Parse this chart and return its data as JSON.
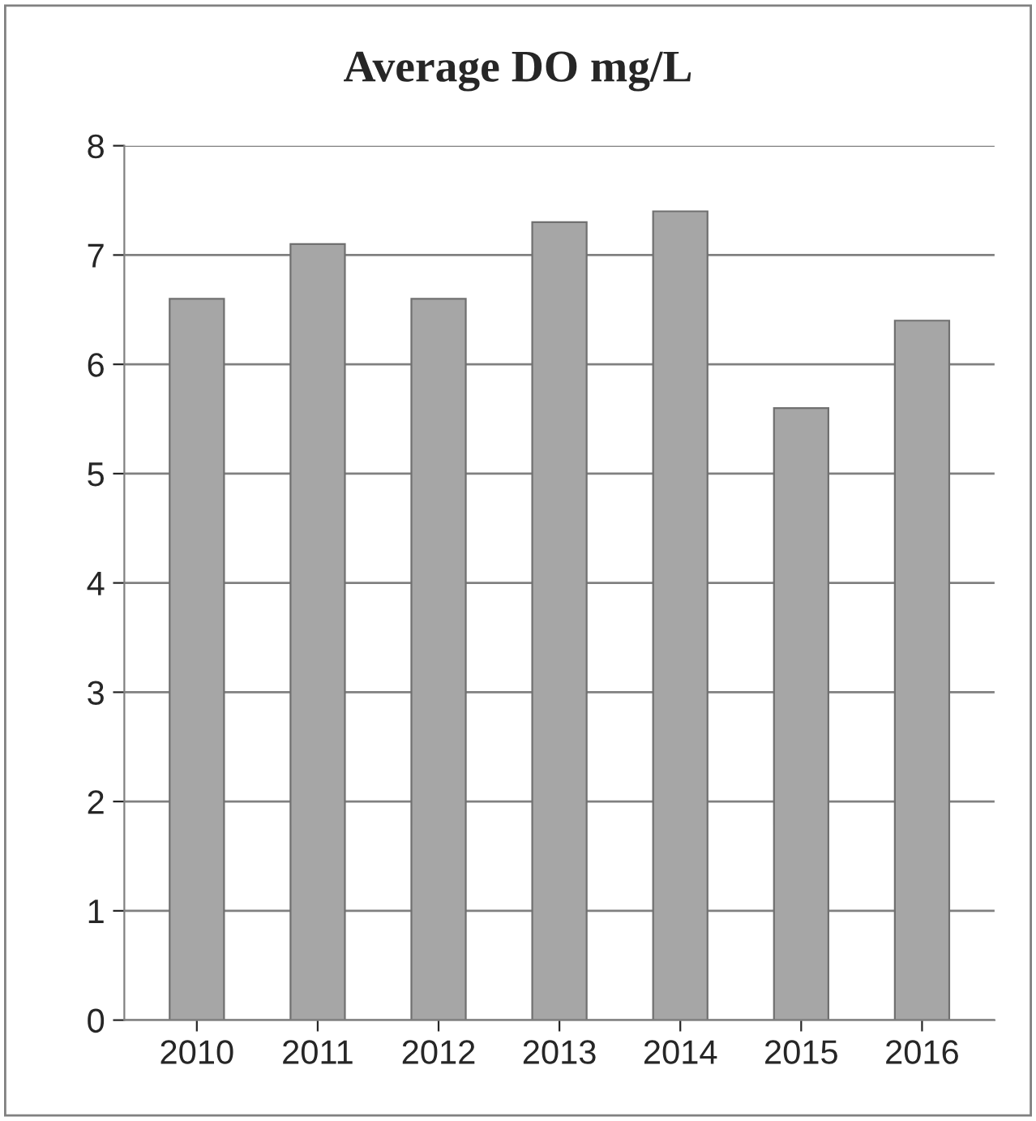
{
  "chart_data": {
    "type": "bar",
    "title": "Average DO mg/L",
    "categories": [
      "2010",
      "2011",
      "2012",
      "2013",
      "2014",
      "2015",
      "2016"
    ],
    "values": [
      6.6,
      7.1,
      6.6,
      7.3,
      7.4,
      5.6,
      6.4
    ],
    "color": "#a6a6a6",
    "ylim": [
      0,
      8
    ],
    "yticks": [
      0,
      1,
      2,
      3,
      4,
      5,
      6,
      7,
      8
    ],
    "grid": "y"
  }
}
